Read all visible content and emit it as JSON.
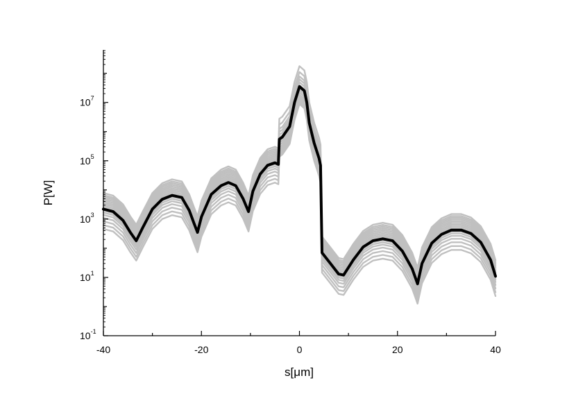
{
  "chart_data": {
    "type": "line",
    "title": "",
    "xlabel": "s[μm]",
    "ylabel": "P[W]",
    "xlim": [
      -40,
      40
    ],
    "ylim_log10": [
      -1,
      8.8
    ],
    "y_scale": "log",
    "grid": false,
    "legend": "none",
    "x_ticks": [
      {
        "value": -40,
        "label": "-40"
      },
      {
        "value": -20,
        "label": "-20"
      },
      {
        "value": 0,
        "label": "0"
      },
      {
        "value": 20,
        "label": "20"
      },
      {
        "value": 40,
        "label": "40"
      }
    ],
    "y_ticks": [
      {
        "value": 0.1,
        "base": "10",
        "exp": "-1"
      },
      {
        "value": 10,
        "base": "10",
        "exp": "1"
      },
      {
        "value": 1000,
        "base": "10",
        "exp": "3"
      },
      {
        "value": 100000,
        "base": "10",
        "exp": "5"
      },
      {
        "value": 10000000,
        "base": "10",
        "exp": "7"
      }
    ],
    "colors": {
      "mean": "#000000",
      "shots": "#c0c0c0",
      "axis": "#000000"
    },
    "series": [
      {
        "role": "mean",
        "points": [
          [
            -40,
            2200
          ],
          [
            -38,
            1800
          ],
          [
            -36,
            900
          ],
          [
            -34.5,
            350
          ],
          [
            -33.3,
            180
          ],
          [
            -32,
            500
          ],
          [
            -30,
            2200
          ],
          [
            -28,
            4800
          ],
          [
            -26,
            6500
          ],
          [
            -24,
            5500
          ],
          [
            -22.5,
            2000
          ],
          [
            -21.5,
            700
          ],
          [
            -20.8,
            350
          ],
          [
            -20,
            1200
          ],
          [
            -18,
            7000
          ],
          [
            -16,
            14000
          ],
          [
            -14.5,
            18000
          ],
          [
            -13,
            14000
          ],
          [
            -11.5,
            5000
          ],
          [
            -10.4,
            1800
          ],
          [
            -9.5,
            9000
          ],
          [
            -8,
            35000
          ],
          [
            -6.5,
            70000
          ],
          [
            -5,
            85000
          ],
          [
            -4.3,
            75000
          ],
          [
            -4.1,
            550000
          ],
          [
            -3.5,
            650000
          ],
          [
            -2,
            1500000
          ],
          [
            -1,
            10000000
          ],
          [
            0,
            35000000
          ],
          [
            1,
            25000000
          ],
          [
            1.5,
            10000000
          ],
          [
            2,
            2000000
          ],
          [
            3,
            400000
          ],
          [
            4,
            120000
          ],
          [
            4.3,
            70000
          ],
          [
            4.6,
            70
          ],
          [
            6,
            35
          ],
          [
            8,
            13
          ],
          [
            9,
            12
          ],
          [
            11,
            40
          ],
          [
            13,
            110
          ],
          [
            15,
            180
          ],
          [
            17,
            210
          ],
          [
            19,
            180
          ],
          [
            21,
            80
          ],
          [
            23,
            20
          ],
          [
            24.1,
            6
          ],
          [
            25,
            30
          ],
          [
            27,
            150
          ],
          [
            29,
            300
          ],
          [
            31,
            420
          ],
          [
            33,
            420
          ],
          [
            35,
            320
          ],
          [
            37,
            160
          ],
          [
            39,
            40
          ],
          [
            40,
            11
          ]
        ]
      },
      {
        "role": "shots",
        "offsets_log10": [
          0.55,
          0.48,
          0.42,
          0.36,
          0.3,
          0.24,
          0.18,
          0.12,
          0.06,
          -0.05,
          -0.12,
          -0.2,
          -0.3,
          -0.42,
          -0.55,
          -0.68
        ],
        "peak_offsets_log10": [
          0.7,
          0.5,
          0.35,
          0.25,
          0.15,
          0.05,
          -0.05,
          -0.12,
          -0.2,
          -0.28,
          -0.35,
          -0.4,
          -0.45,
          -0.5,
          -0.55,
          -0.6
        ]
      }
    ]
  }
}
